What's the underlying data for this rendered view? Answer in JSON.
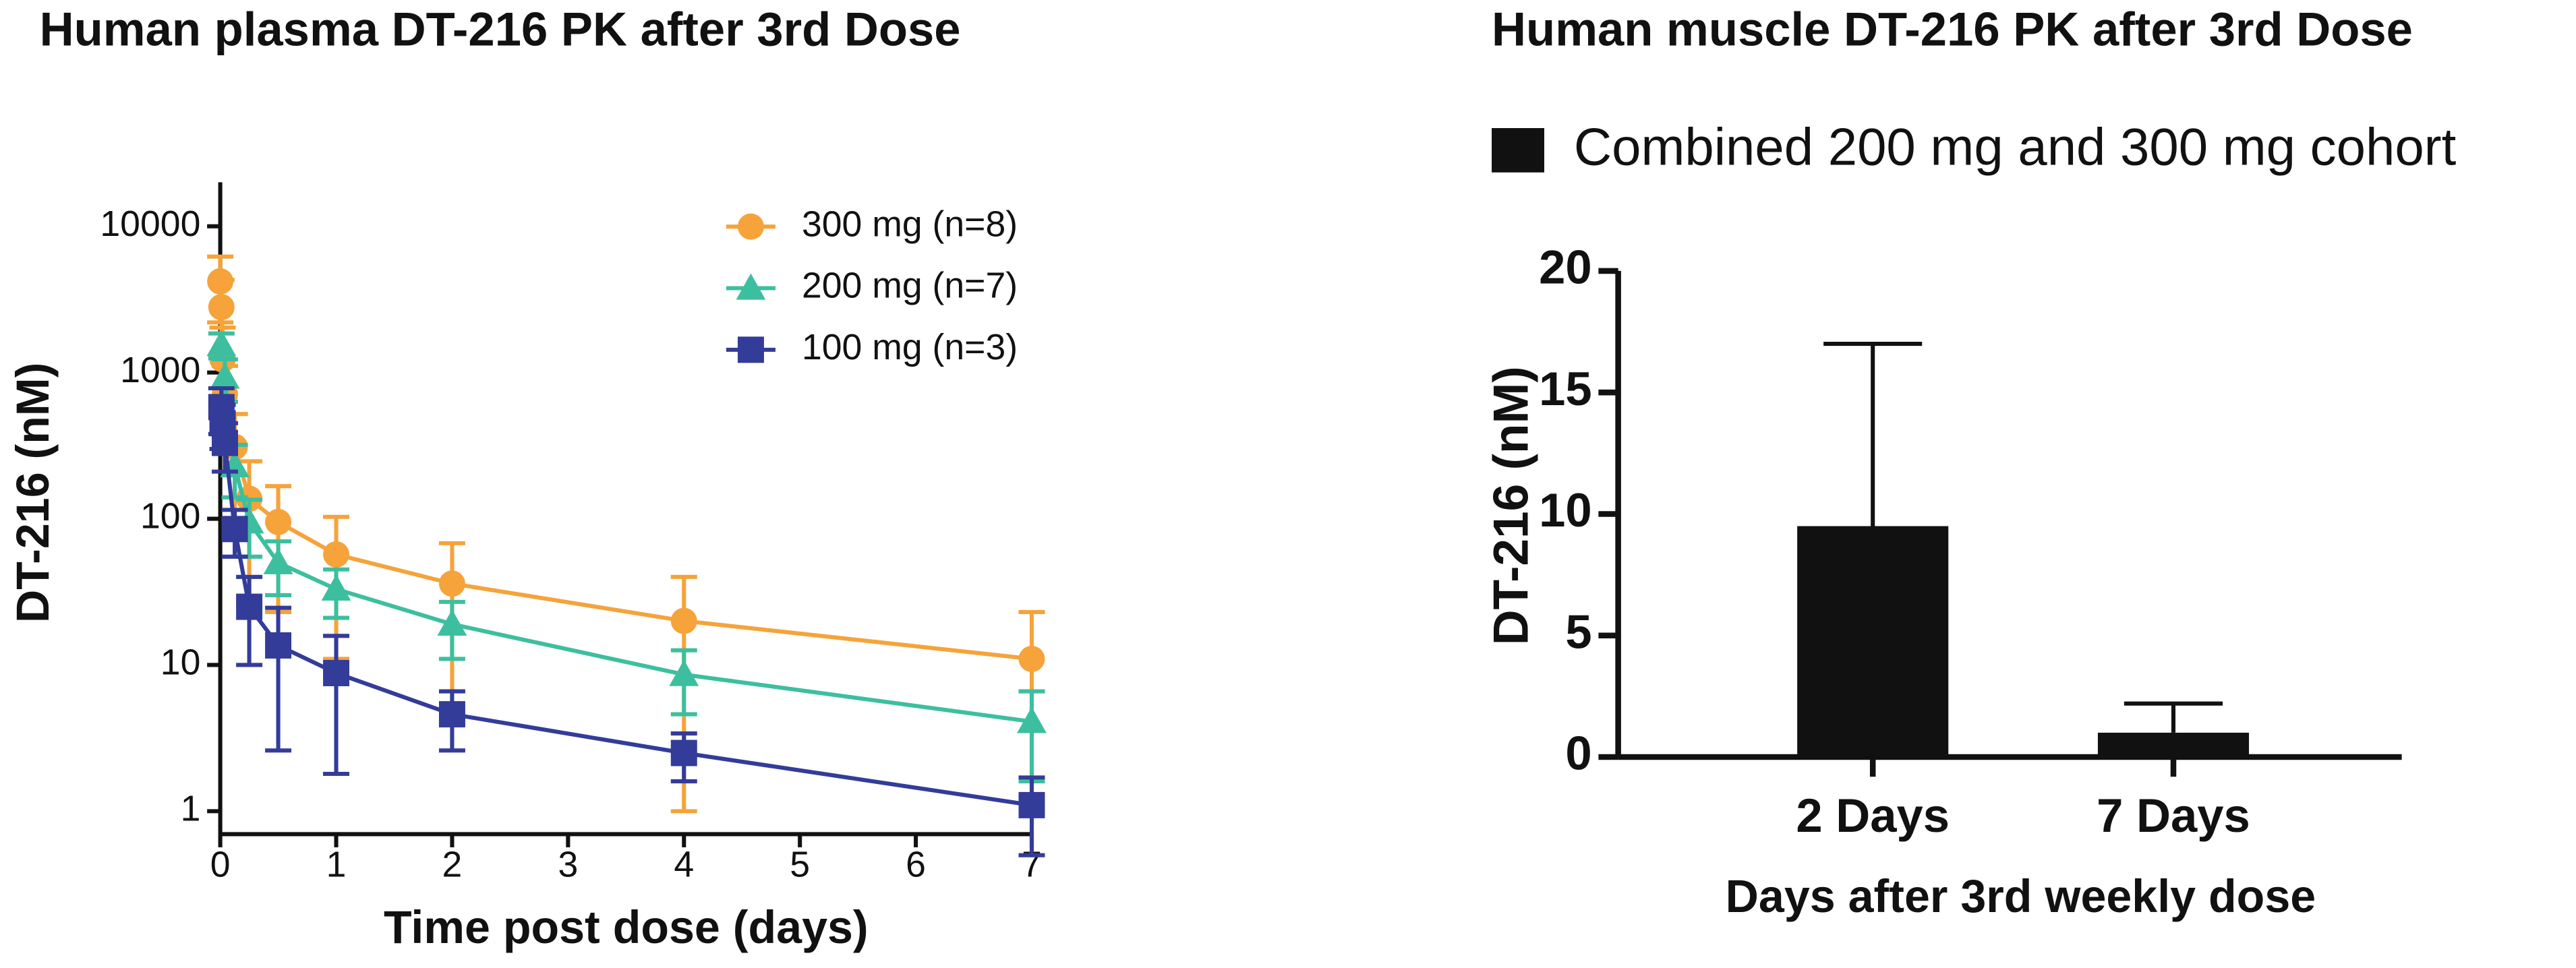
{
  "chart_data": [
    {
      "type": "line",
      "title": "Human plasma DT-216 PK after 3rd Dose",
      "x_label": "Time post dose (days)",
      "y_label": "DT-216 (nM)",
      "x": [
        0,
        0.01,
        0.02,
        0.04,
        0.125,
        0.25,
        0.5,
        1,
        2,
        4,
        7
      ],
      "series": [
        {
          "name": "300 mg (n=8)",
          "color": "#f5a33a",
          "marker": "circle",
          "values": [
            4200,
            2800,
            1230,
            710,
            310,
            137,
            95,
            57,
            36,
            20,
            11
          ],
          "errors": [
            2000,
            1500,
            800,
            400,
            210,
            110,
            72,
            46,
            32,
            20,
            12
          ]
        },
        {
          "name": "200 mg (n=7)",
          "color": "#3dbf9f",
          "marker": "triangle",
          "values": [
            null,
            1550,
            null,
            930,
            230,
            95,
            50,
            33,
            19,
            8.6,
            4.1
          ],
          "errors": [
            null,
            300,
            null,
            300,
            90,
            40,
            20,
            12,
            8,
            4,
            2.5
          ]
        },
        {
          "name": "100 mg (n=3)",
          "color": "#333c99",
          "marker": "square",
          "values": [
            null,
            580,
            450,
            330,
            85,
            25,
            13.6,
            8.8,
            4.6,
            2.5,
            1.1
          ],
          "errors": [
            null,
            200,
            150,
            120,
            30,
            15,
            11,
            7,
            2,
            0.9,
            0.6
          ]
        }
      ],
      "log_y": true,
      "xlim": [
        0,
        7
      ],
      "xticks": [
        0,
        1,
        2,
        3,
        4,
        5,
        6,
        7
      ],
      "ylim": [
        1,
        20000
      ],
      "yticks": [
        1,
        10,
        100,
        1000,
        10000
      ],
      "legend": "top-right"
    },
    {
      "type": "bar",
      "title": "Human muscle DT-216 PK after 3rd Dose",
      "x_label": "Days after 3rd weekly dose",
      "y_label": "DT-216 (nM)",
      "categories": [
        "2 Days",
        "7 Days"
      ],
      "series": [
        {
          "name": "Combined 200 mg and 300 mg cohort",
          "color": "#111111",
          "values": [
            9.5,
            1.0
          ],
          "errors": [
            7.5,
            1.2
          ]
        }
      ],
      "ylim": [
        0,
        20
      ],
      "yticks": [
        0,
        5,
        10,
        15,
        20
      ],
      "legend": "top-left"
    }
  ]
}
